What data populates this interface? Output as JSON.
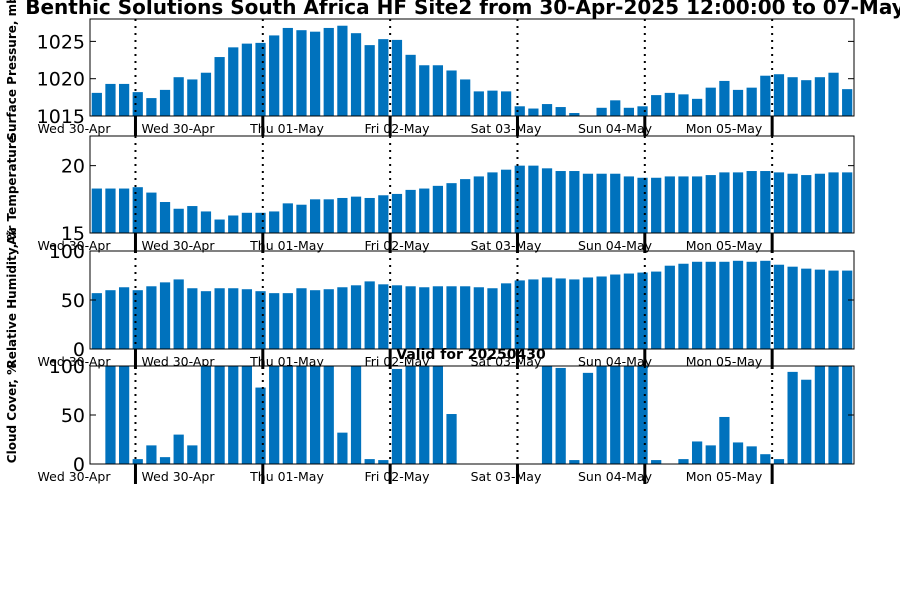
{
  "title": "Benthic Solutions South Africa HF Site2 from 30-Apr-2025 12:00:00 to 07-May",
  "valid_label": "Valid for 20250430",
  "colors": {
    "bar": "#0072BD",
    "axis": "#000000",
    "background": "#ffffff"
  },
  "chart_data": [
    {
      "type": "bar",
      "ylabel": "Surface Pressure, mb",
      "ylim": [
        1015,
        1028
      ],
      "yticks": [
        1015,
        1020,
        1025
      ],
      "xlim": [
        0,
        42
      ],
      "day_boundaries": [
        2.5,
        9.5,
        16.5,
        23.5,
        30.5,
        37.5
      ],
      "xtick_labels": [
        "Wed 30-Apr",
        "Wed 30-Apr",
        "Thu 01-May",
        "Fri 02-May",
        "Sat 03-May",
        "Sun 04-May",
        "Mon 05-May"
      ],
      "values": [
        1018.1,
        1019.3,
        1019.3,
        1018.2,
        1017.4,
        1018.5,
        1020.2,
        1019.9,
        1020.8,
        1022.9,
        1024.2,
        1024.7,
        1024.8,
        1025.8,
        1026.8,
        1026.5,
        1026.3,
        1026.8,
        1027.1,
        1026.1,
        1024.5,
        1025.3,
        1025.2,
        1023.2,
        1021.8,
        1021.8,
        1021.1,
        1019.9,
        1018.3,
        1018.4,
        1018.3,
        1016.3,
        1016.0,
        1016.6,
        1016.2,
        1015.4,
        1014.9,
        1016.1,
        1017.1,
        1016.1,
        1016.3,
        1017.8,
        1018.1,
        1017.9,
        1017.3,
        1018.8,
        1019.7,
        1018.5,
        1018.8,
        1020.4,
        1020.6,
        1020.2,
        1019.8,
        1020.2,
        1020.8,
        1018.6
      ]
    },
    {
      "type": "bar",
      "ylabel": "Air Temperature",
      "ylim": [
        15,
        22.2
      ],
      "yticks": [
        15,
        20
      ],
      "xlim": [
        0,
        42
      ],
      "day_boundaries": [
        2.5,
        9.5,
        16.5,
        23.5,
        30.5,
        37.5
      ],
      "xtick_labels": [
        "Wed 30-Apr",
        "Wed 30-Apr",
        "Thu 01-May",
        "Fri 02-May",
        "Sat 03-May",
        "Sun 04-May",
        "Mon 05-May"
      ],
      "values": [
        18.3,
        18.3,
        18.3,
        18.4,
        18.0,
        17.3,
        16.8,
        17.0,
        16.6,
        16.0,
        16.3,
        16.5,
        16.5,
        16.6,
        17.2,
        17.1,
        17.5,
        17.5,
        17.6,
        17.7,
        17.6,
        17.8,
        17.9,
        18.2,
        18.3,
        18.5,
        18.7,
        19.0,
        19.2,
        19.5,
        19.7,
        20.0,
        20.0,
        19.8,
        19.6,
        19.6,
        19.4,
        19.4,
        19.4,
        19.2,
        19.1,
        19.1,
        19.2,
        19.2,
        19.2,
        19.3,
        19.5,
        19.5,
        19.6,
        19.6,
        19.5,
        19.4,
        19.3,
        19.4,
        19.5,
        19.5
      ]
    },
    {
      "type": "bar",
      "ylabel": "Relative Humidity, %",
      "ylim": [
        0,
        100
      ],
      "yticks": [
        0,
        50,
        100
      ],
      "xlim": [
        0,
        42
      ],
      "day_boundaries": [
        2.5,
        9.5,
        16.5,
        23.5,
        30.5,
        37.5
      ],
      "xtick_labels": [
        "Wed 30-Apr",
        "Wed 30-Apr",
        "Thu 01-May",
        "Fri 02-May",
        "Sat 03-May",
        "Sun 04-May",
        "Mon 05-May"
      ],
      "values": [
        57,
        60,
        63,
        60,
        64,
        68,
        71,
        62,
        59,
        62,
        62,
        61,
        59,
        57,
        57,
        62,
        60,
        61,
        63,
        65,
        69,
        66,
        65,
        64,
        63,
        64,
        64,
        64,
        63,
        62,
        67,
        70,
        71,
        73,
        72,
        71,
        73,
        74,
        76,
        77,
        78,
        79,
        85,
        87,
        89,
        89,
        89,
        90,
        89,
        90,
        86,
        84,
        82,
        81,
        80,
        80
      ]
    },
    {
      "type": "bar",
      "ylabel": "Cloud Cover, %",
      "ylim": [
        0,
        100
      ],
      "yticks": [
        0,
        50,
        100
      ],
      "xlim": [
        0,
        42
      ],
      "day_boundaries": [
        2.5,
        9.5,
        16.5,
        23.5,
        30.5,
        37.5
      ],
      "xtick_labels": [
        "Wed 30-Apr",
        "Wed 30-Apr",
        "Thu 01-May",
        "Fri 02-May",
        "Sat 03-May",
        "Sun 04-May",
        "Mon 05-May"
      ],
      "values": [
        0,
        100,
        100,
        5,
        19,
        7,
        30,
        19,
        100,
        100,
        100,
        100,
        78,
        100,
        100,
        100,
        100,
        100,
        32,
        100,
        5,
        4,
        97,
        100,
        100,
        100,
        51,
        0,
        0,
        0,
        0,
        0,
        0,
        100,
        98,
        4,
        93,
        100,
        100,
        100,
        100,
        4,
        0,
        5,
        23,
        19,
        48,
        22,
        18,
        10,
        5,
        94,
        86,
        100,
        100,
        100
      ]
    }
  ]
}
